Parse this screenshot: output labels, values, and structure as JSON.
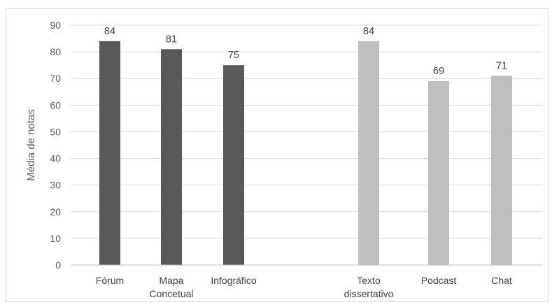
{
  "chart_data": {
    "type": "bar",
    "ylabel": "Média de notas",
    "ylim": [
      0,
      90
    ],
    "yticks": [
      0,
      10,
      20,
      30,
      40,
      50,
      60,
      70,
      80,
      90
    ],
    "grid": true,
    "data_labels": true,
    "categories": [
      "Fórum",
      "Mapa Concetual",
      "Infográfico",
      "Texto dissertativo",
      "Podcast",
      "Chat"
    ],
    "category_lines": [
      [
        "Fórum"
      ],
      [
        "Mapa",
        "Concetual"
      ],
      [
        "Infográfico"
      ],
      [
        "Texto",
        "dissertativo"
      ],
      [
        "Podcast"
      ],
      [
        "Chat"
      ]
    ],
    "values": [
      84,
      81,
      75,
      84,
      69,
      71
    ],
    "colors": [
      "#595959",
      "#595959",
      "#595959",
      "#bfbfbf",
      "#bfbfbf",
      "#bfbfbf"
    ]
  }
}
